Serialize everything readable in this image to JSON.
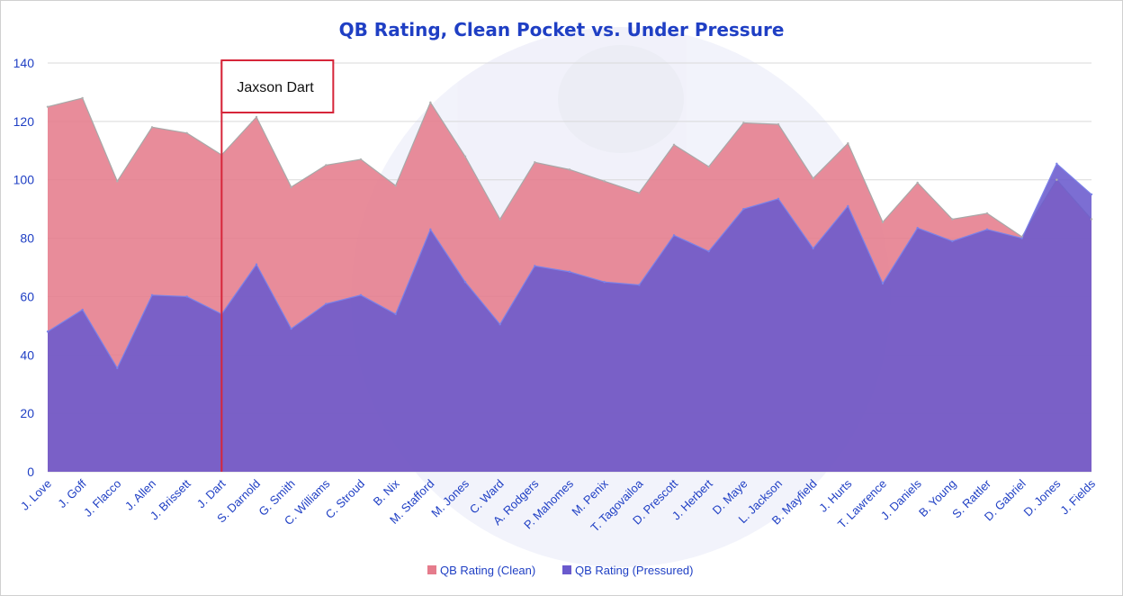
{
  "chart_data": {
    "type": "area",
    "title": "QB Rating, Clean Pocket vs. Under Pressure",
    "xlabel": "",
    "ylabel": "",
    "ylim": [
      0,
      140
    ],
    "yticks": [
      0,
      20,
      40,
      60,
      80,
      100,
      120,
      140
    ],
    "grid": true,
    "legend_position": "bottom",
    "categories": [
      "J. Love",
      "J. Goff",
      "J. Flacco",
      "J. Allen",
      "J. Brissett",
      "J. Dart",
      "S. Darnold",
      "G. Smith",
      "C. Williams",
      "C. Stroud",
      "B. Nix",
      "M. Stafford",
      "M. Jones",
      "C. Ward",
      "A. Rodgers",
      "P. Mahomes",
      "M. Penix",
      "T. Tagovailoa",
      "D. Prescott",
      "J. Herbert",
      "D. Maye",
      "L. Jackson",
      "B. Mayfield",
      "J. Hurts",
      "T. Lawrence",
      "J. Daniels",
      "B. Young",
      "S. Rattler",
      "D. Gabriel",
      "D. Jones",
      "J. Fields"
    ],
    "series": [
      {
        "name": "QB Rating (Clean)",
        "color": "#E57C8C",
        "values": [
          125,
          128,
          99.5,
          118,
          116,
          108.5,
          121.5,
          97.5,
          105,
          107,
          98,
          126.5,
          108,
          86.5,
          106,
          103.5,
          99.5,
          95.5,
          112,
          104.5,
          119.5,
          119,
          100.5,
          112.5,
          85.5,
          99,
          86.5,
          88.5,
          80.5,
          100,
          86.5
        ]
      },
      {
        "name": "QB Rating (Pressured)",
        "color": "#6A5ACD",
        "values": [
          48,
          55.5,
          35.5,
          60.5,
          60,
          54,
          71,
          49,
          57.5,
          60.5,
          54,
          83,
          65,
          50.5,
          70.5,
          68.5,
          65,
          64,
          81,
          75.5,
          90,
          93.5,
          76.5,
          91,
          64.5,
          83.5,
          79,
          83,
          80,
          105.5,
          95
        ]
      }
    ],
    "annotation": {
      "label": "Jaxson Dart",
      "category": "J. Dart",
      "color": "#D6263A"
    },
    "colors": {
      "title": "#1F3FC4",
      "axis_text": "#1F3FC4",
      "grid": "#D9D9D9",
      "clean_area": "#E57C8C",
      "pressured_area": "#6A5ACD",
      "pressured_outline": "#7B82E8"
    }
  }
}
